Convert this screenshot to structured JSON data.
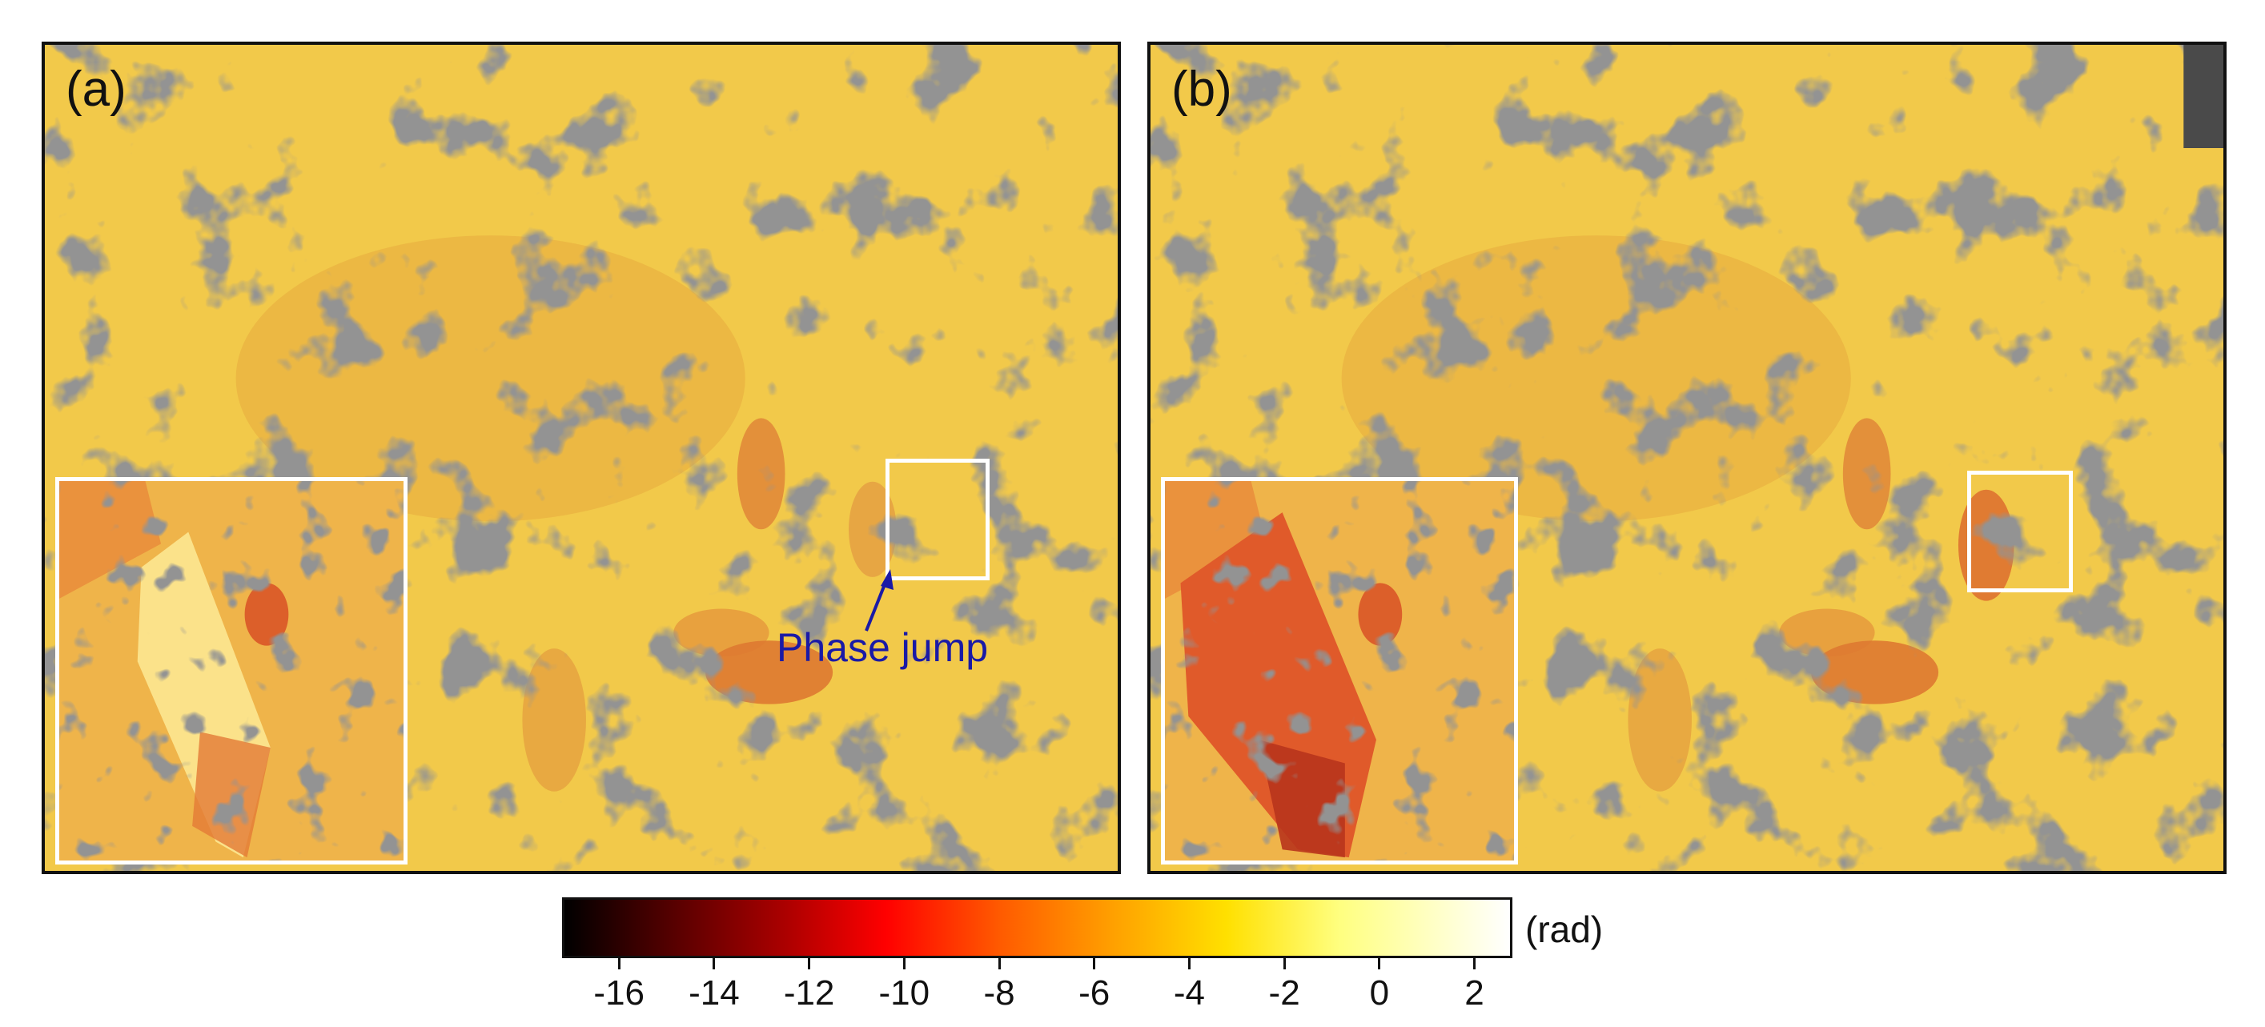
{
  "panels": [
    {
      "label": "(a)",
      "annotation": "Phase jump"
    },
    {
      "label": "(b)"
    }
  ],
  "colorbar": {
    "unit": "(rad)",
    "ticks": [
      "-16",
      "-14",
      "-12",
      "-10",
      "-8",
      "-6",
      "-4",
      "-2",
      "0",
      "2"
    ],
    "range": [
      -17.2,
      2.8
    ],
    "stops": [
      "#000000",
      "#5a0000",
      "#b00000",
      "#ff0000",
      "#ff5a00",
      "#ffa000",
      "#ffe000",
      "#ffff80",
      "#ffffff"
    ]
  },
  "colors": {
    "terrain_yellow": "#f2c94a",
    "terrain_orange": "#e8a13a",
    "shadow_gray": "#4a4a4a",
    "annotation_blue": "#1a1aa6"
  }
}
